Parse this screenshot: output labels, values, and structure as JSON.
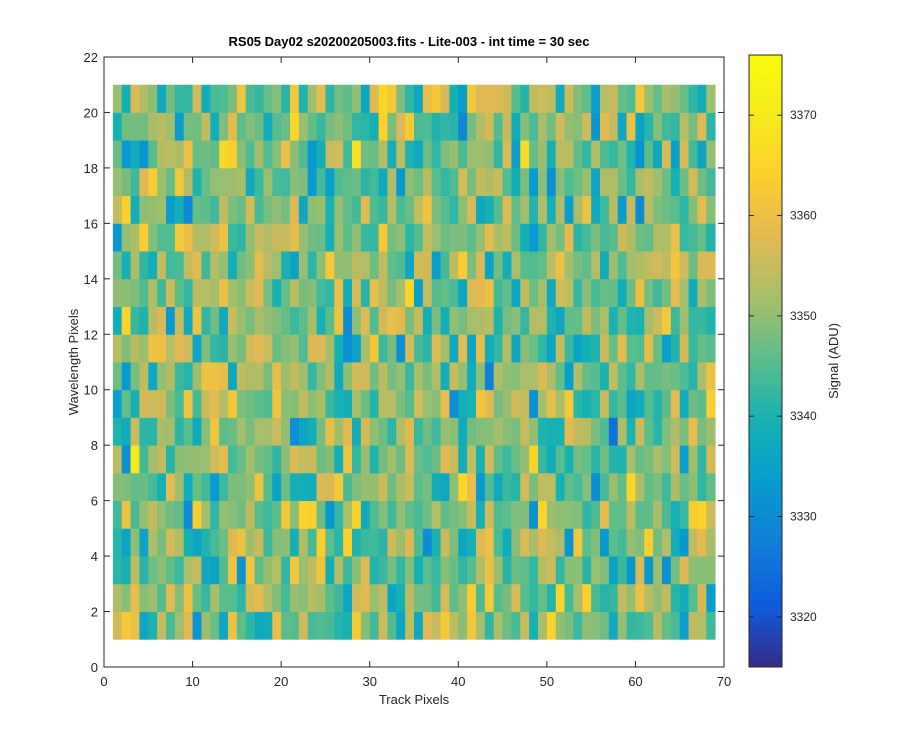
{
  "chart_data": {
    "type": "heatmap",
    "title": "RS05 Day02  s20200205003.fits - Lite-003 - int time = 30 sec",
    "xlabel": "Track Pixels",
    "ylabel": "Wavelength Pixels",
    "xlim": [
      0,
      70
    ],
    "ylim": [
      0,
      22
    ],
    "xticks": [
      0,
      10,
      20,
      30,
      40,
      50,
      60,
      70
    ],
    "yticks": [
      0,
      2,
      4,
      6,
      8,
      10,
      12,
      14,
      16,
      18,
      20,
      22
    ],
    "x_range": [
      1,
      69
    ],
    "y_range": [
      1,
      21
    ],
    "n_cols": 68,
    "n_rows": 20,
    "value_range": [
      3315,
      3376
    ],
    "colormap": "parula",
    "colorbar": {
      "label": "Signal (ADU)",
      "ticks": [
        3320,
        3330,
        3340,
        3350,
        3360,
        3370
      ],
      "range": [
        3315,
        3376
      ]
    },
    "grid": false,
    "seed": 20200205
  }
}
